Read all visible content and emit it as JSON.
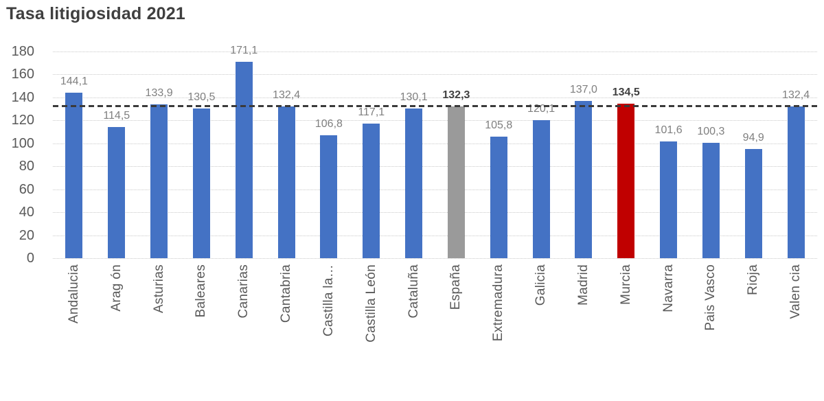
{
  "chart_data": {
    "type": "bar",
    "title": "Tasa litigiosidad 2021",
    "xlabel": "",
    "ylabel": "",
    "ylim": [
      0,
      180
    ],
    "y_ticks": [
      0,
      20,
      40,
      60,
      80,
      100,
      120,
      140,
      160,
      180
    ],
    "grid": true,
    "legend": false,
    "categories": [
      "Andalucia",
      "Arag ón",
      "Asturias",
      "Baleares",
      "Canarias",
      "Cantabria",
      "Castilla la…",
      "Castilla León",
      "Cataluña",
      "España",
      "Extremadura",
      "Galicia",
      "Madrid",
      "Murcia",
      "Navarra",
      "Pais Vasco",
      "Rioja",
      "Valen cia"
    ],
    "values": [
      144.1,
      114.5,
      133.9,
      130.5,
      171.1,
      132.4,
      106.8,
      117.1,
      130.1,
      132.3,
      105.8,
      120.1,
      137.0,
      134.5,
      101.6,
      100.3,
      94.9,
      132.4
    ],
    "value_labels": [
      "144,1",
      "114,5",
      "133,9",
      "130,5",
      "171,1",
      "132,4",
      "106,8",
      "117,1",
      "130,1",
      "132,3",
      "105,8",
      "120,1",
      "137,0",
      "134,5",
      "101,6",
      "100,3",
      "94,9",
      "132,4"
    ],
    "bar_fill": [
      "#4472C4",
      "#4472C4",
      "#4472C4",
      "#4472C4",
      "#4472C4",
      "#4472C4",
      "#4472C4",
      "#4472C4",
      "#4472C4",
      "#9a9a9a",
      "#4472C4",
      "#4472C4",
      "#4472C4",
      "#C00000",
      "#4472C4",
      "#4472C4",
      "#4472C4",
      "#4472C4"
    ],
    "pattern_bars": [
      9
    ],
    "bold_value_labels": [
      9,
      13
    ],
    "reference_line": {
      "value": 132.3,
      "style": "dashed",
      "color": "#3a3a3a"
    },
    "colors": {
      "bar_default": "#4472C4",
      "bar_highlight": "#C00000",
      "bar_average": "#9a9a9a",
      "title_text": "#3f3f3f",
      "axis_text": "#595959",
      "value_label_text": "#7f7f7f",
      "value_label_bold_text": "#404040",
      "gridline": "#c9c9c9",
      "reference_line": "#3a3a3a"
    }
  }
}
